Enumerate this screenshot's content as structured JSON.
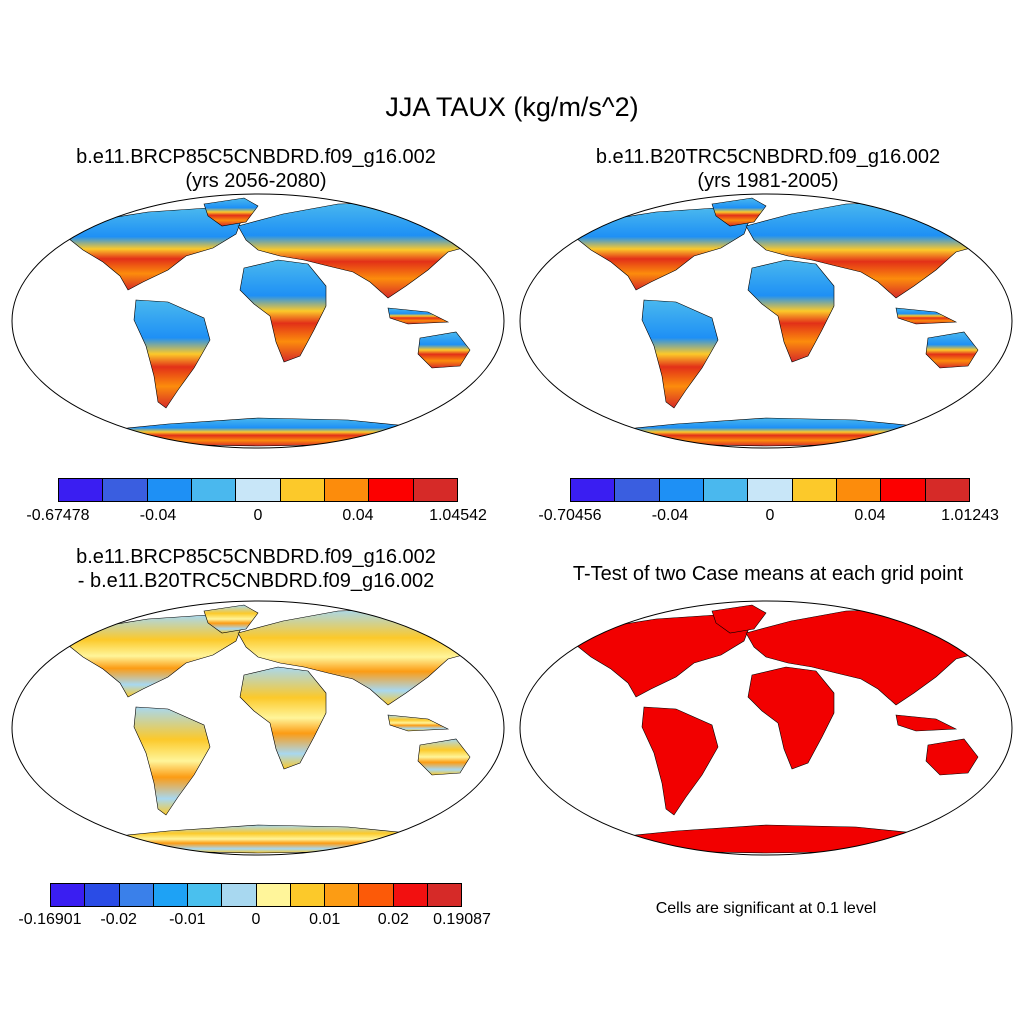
{
  "title": "JJA TAUX (kg/m/s^2)",
  "panels": [
    {
      "title_line1": "b.e11.BRCP85C5CNBDRD.f09_g16.002",
      "title_line2": "(yrs 2056-2080)",
      "colorbar": {
        "colors": [
          "#3a1ef2",
          "#3a5ee0",
          "#1e90f5",
          "#4ab8ee",
          "#c8e6f8",
          "#fcc92a",
          "#fc8c0c",
          "#fc0000",
          "#d62a28"
        ],
        "labels": [
          "-0.67478",
          "-0.04",
          "0",
          "0.04",
          "1.04542"
        ]
      }
    },
    {
      "title_line1": "b.e11.B20TRC5CNBDRD.f09_g16.002",
      "title_line2": "(yrs 1981-2005)",
      "colorbar": {
        "colors": [
          "#3a1ef2",
          "#3a5ee0",
          "#1e90f5",
          "#4ab8ee",
          "#c8e6f8",
          "#fcc92a",
          "#fc8c0c",
          "#fc0000",
          "#d62a28"
        ],
        "labels": [
          "-0.70456",
          "-0.04",
          "0",
          "0.04",
          "1.01243"
        ]
      }
    },
    {
      "title_line1": "b.e11.BRCP85C5CNBDRD.f09_g16.002",
      "title_line2": "- b.e11.B20TRC5CNBDRD.f09_g16.002",
      "colorbar": {
        "colors": [
          "#3a1ef2",
          "#2a4ce6",
          "#3a80ea",
          "#1ea2f5",
          "#4ac0ee",
          "#a8d8f0",
          "#fff59a",
          "#fcc92a",
          "#fc9c14",
          "#fc5a08",
          "#f21010",
          "#d62a28"
        ],
        "labels": [
          "-0.16901",
          "-0.02",
          "-0.01",
          "0",
          "0.01",
          "0.02",
          "0.19087"
        ]
      }
    },
    {
      "title_line1": "T-Test of two Case means at each grid point",
      "note": "Cells are significant at 0.1 level"
    }
  ]
}
